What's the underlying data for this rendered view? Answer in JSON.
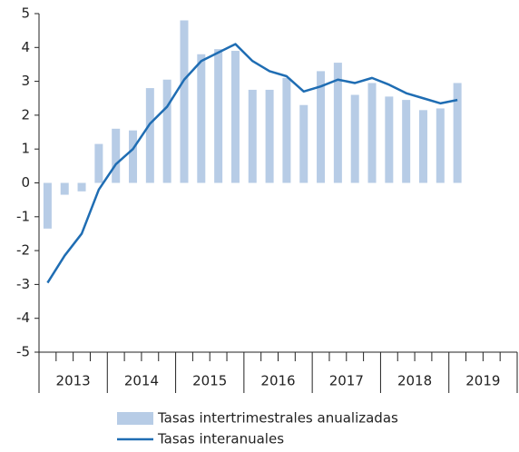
{
  "chart_data": {
    "type": "bar-line",
    "categories": [
      null,
      null,
      null,
      null,
      null,
      null,
      null,
      null,
      null,
      null,
      null,
      null,
      null,
      null,
      null,
      null,
      null,
      null,
      null,
      null,
      null,
      null,
      null,
      null,
      null,
      null,
      null,
      null
    ],
    "years": [
      "2013",
      "2014",
      "2015",
      "2016",
      "2017",
      "2018",
      "2019"
    ],
    "series": [
      {
        "name": "Tasas intertrimestrales anualizadas",
        "type": "bar",
        "color": "#b7cce6",
        "values": [
          -1.35,
          -0.35,
          -0.25,
          1.15,
          1.6,
          1.55,
          2.8,
          3.05,
          4.8,
          3.8,
          3.95,
          3.9,
          2.75,
          2.75,
          3.1,
          2.3,
          3.3,
          3.55,
          2.6,
          2.95,
          2.55,
          2.45,
          2.15,
          2.2,
          2.95,
          null,
          null,
          null
        ]
      },
      {
        "name": "Tasas interanuales",
        "type": "line",
        "color": "#1f6db3",
        "values": [
          -2.95,
          -2.15,
          -1.5,
          -0.2,
          0.55,
          1.0,
          1.75,
          2.25,
          3.05,
          3.6,
          3.85,
          4.1,
          3.6,
          3.3,
          3.15,
          2.7,
          2.85,
          3.05,
          2.95,
          3.1,
          2.9,
          2.65,
          2.5,
          2.35,
          2.45,
          null,
          null,
          null
        ]
      }
    ],
    "ylim": [
      -5,
      5
    ],
    "yticks": [
      -5,
      -4,
      -3,
      -2,
      -1,
      0,
      1,
      2,
      3,
      4,
      5
    ]
  }
}
